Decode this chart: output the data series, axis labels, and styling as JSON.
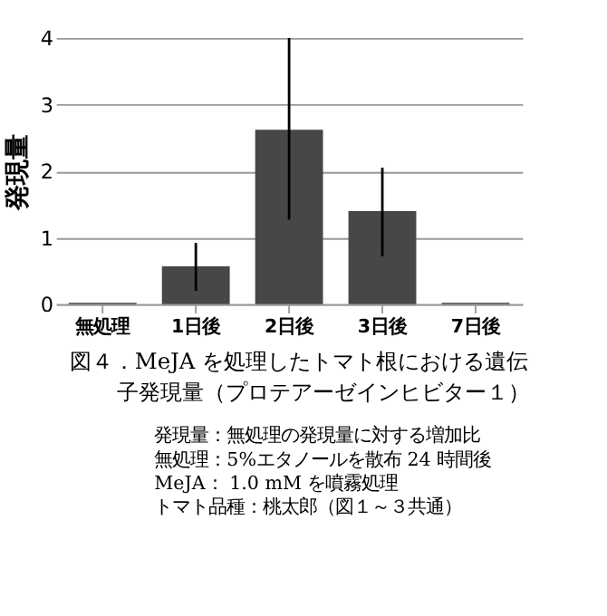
{
  "chart_data": {
    "type": "bar",
    "title": "図４．MeJA を処理したトマト根における遺伝子発現量（プロテアーゼインヒビター１）",
    "ylabel": "発現量",
    "categories": [
      "無処理",
      "1日後",
      "2日後",
      "3日後",
      "7日後"
    ],
    "values": [
      0.02,
      0.57,
      2.62,
      1.4,
      0.02
    ],
    "errors": [
      null,
      [
        0.2,
        0.92
      ],
      [
        1.27,
        4.0
      ],
      [
        0.72,
        2.05
      ],
      null
    ],
    "color": "#474747",
    "ylim": [
      0,
      4
    ],
    "yticks": [
      0,
      1,
      2,
      3,
      4
    ],
    "grid": "y",
    "annotations": [
      "発現量：無処理の発現量に対する増加比",
      "無処理：5%エタノールを散布 24 時間後",
      "MeJA：  1.0 mM を噴霧処理",
      "トマト品種：桃太郎（図１～３共通）"
    ]
  }
}
